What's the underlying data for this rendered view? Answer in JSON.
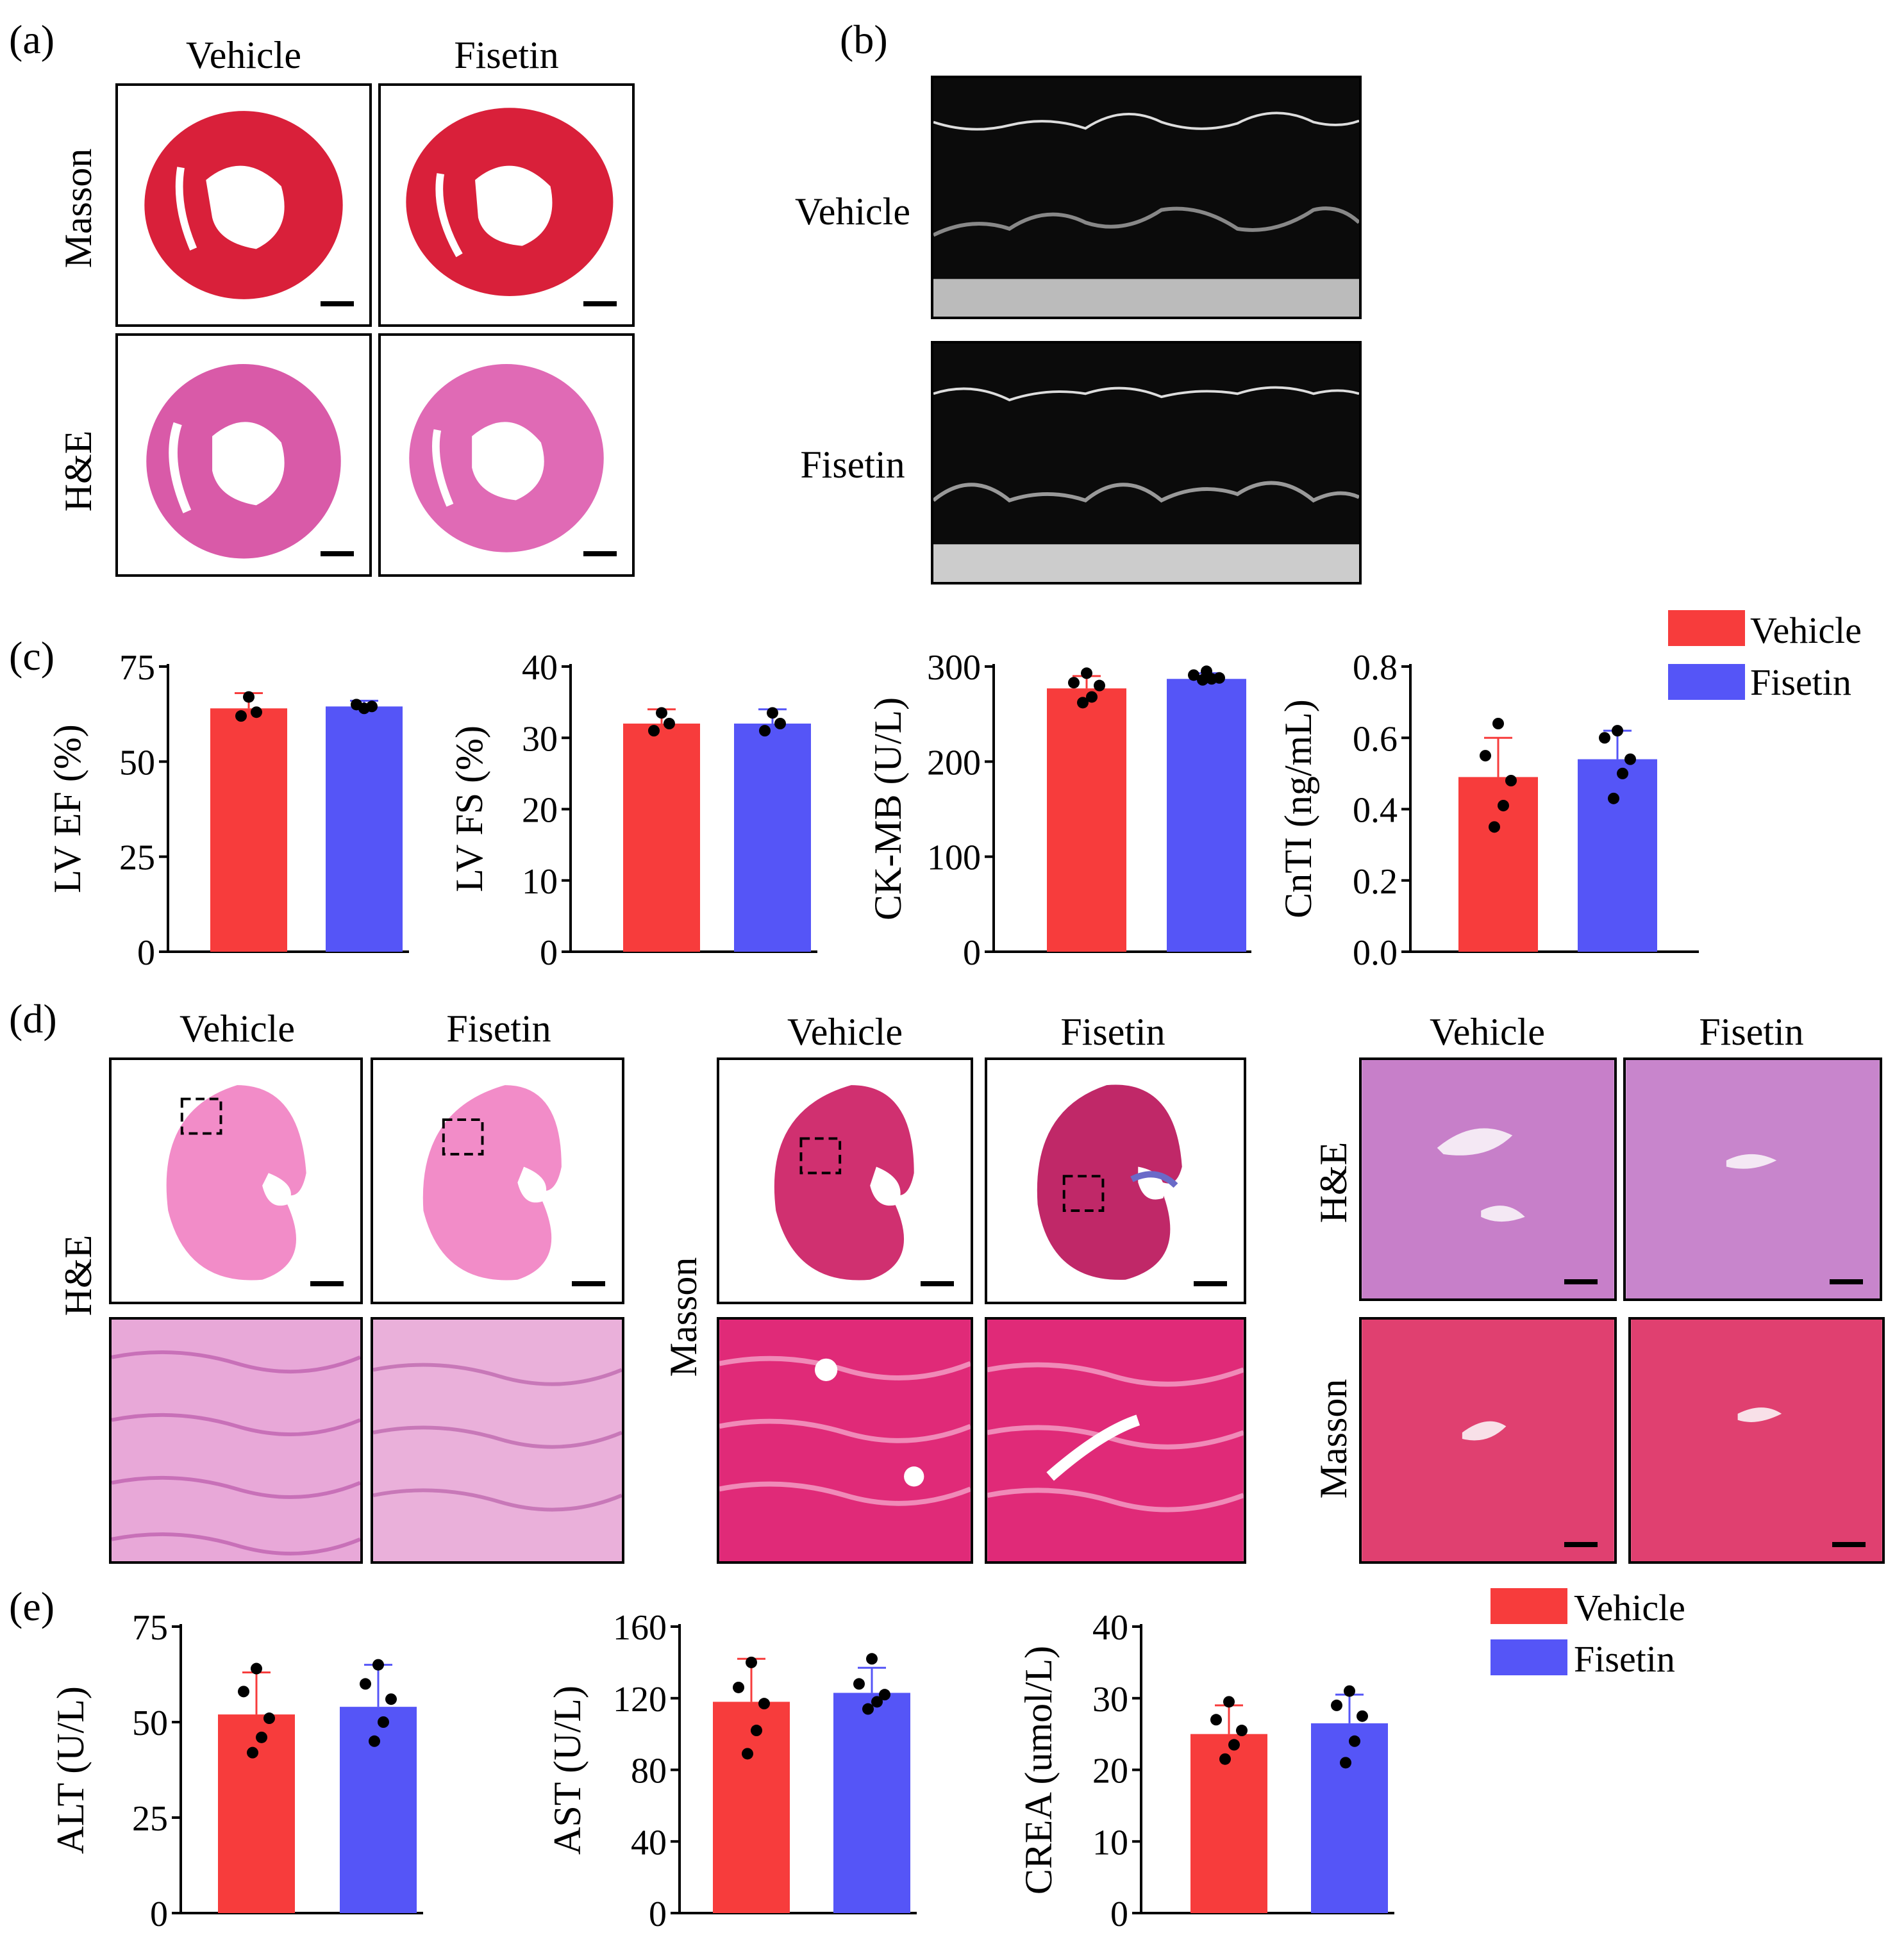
{
  "panels": {
    "a": "(a)",
    "b": "(b)",
    "c": "(c)",
    "d": "(d)",
    "e": "(e)"
  },
  "groups": {
    "vehicle": "Vehicle",
    "fisetin": "Fisetin"
  },
  "stains": {
    "masson": "Masson",
    "he": "H&E"
  },
  "colors": {
    "vehicle": "#f73c3c",
    "fisetin": "#5555f7",
    "masson_tissue": "#d9203a",
    "he_tissue": "#d95aa8",
    "liver_he": "#c77fc9",
    "liver_masson": "#e04070"
  },
  "legend": [
    {
      "label": "Vehicle",
      "color": "#f73c3c"
    },
    {
      "label": "Fisetin",
      "color": "#5555f7"
    }
  ],
  "chart_data": [
    {
      "type": "bar",
      "panel": "c",
      "ylabel": "LV EF (%)",
      "ylim": [
        0,
        75
      ],
      "yticks": [
        0,
        25,
        50,
        75
      ],
      "categories": [
        "Vehicle",
        "Fisetin"
      ],
      "series": [
        {
          "name": "Vehicle",
          "value": 64,
          "error": 4,
          "points": [
            62,
            63,
            67
          ]
        },
        {
          "name": "Fisetin",
          "value": 64.5,
          "error": 1.5,
          "points": [
            65,
            64.5,
            64
          ]
        }
      ]
    },
    {
      "type": "bar",
      "panel": "c",
      "ylabel": "LV FS (%)",
      "ylim": [
        0,
        40
      ],
      "yticks": [
        0,
        10,
        20,
        30,
        40
      ],
      "categories": [
        "Vehicle",
        "Fisetin"
      ],
      "series": [
        {
          "name": "Vehicle",
          "value": 32,
          "error": 2,
          "points": [
            31,
            32,
            33.5
          ]
        },
        {
          "name": "Fisetin",
          "value": 32,
          "error": 2,
          "points": [
            31,
            32,
            33.5
          ]
        }
      ]
    },
    {
      "type": "bar",
      "panel": "c",
      "ylabel": "CK-MB (U/L)",
      "ylim": [
        0,
        300
      ],
      "yticks": [
        0,
        100,
        200,
        300
      ],
      "categories": [
        "Vehicle",
        "Fisetin"
      ],
      "series": [
        {
          "name": "Vehicle",
          "value": 277,
          "error": 13,
          "points": [
            293,
            283,
            280,
            268,
            262
          ]
        },
        {
          "name": "Fisetin",
          "value": 287,
          "error": 6,
          "points": [
            295,
            291,
            288,
            287,
            286
          ]
        }
      ]
    },
    {
      "type": "bar",
      "panel": "c",
      "ylabel": "CnTI (ng/mL)",
      "ylim": [
        0,
        0.8
      ],
      "yticks": [
        "0.0",
        "0.2",
        "0.4",
        "0.6",
        "0.8"
      ],
      "categories": [
        "Vehicle",
        "Fisetin"
      ],
      "series": [
        {
          "name": "Vehicle",
          "value": 0.49,
          "error": 0.11,
          "points": [
            0.64,
            0.55,
            0.48,
            0.41,
            0.35
          ]
        },
        {
          "name": "Fisetin",
          "value": 0.54,
          "error": 0.08,
          "points": [
            0.62,
            0.6,
            0.54,
            0.5,
            0.43
          ]
        }
      ]
    },
    {
      "type": "bar",
      "panel": "e",
      "ylabel": "ALT (U/L)",
      "ylim": [
        0,
        75
      ],
      "yticks": [
        0,
        25,
        50,
        75
      ],
      "categories": [
        "Vehicle",
        "Fisetin"
      ],
      "series": [
        {
          "name": "Vehicle",
          "value": 52,
          "error": 11,
          "points": [
            64,
            58,
            51,
            46,
            42
          ]
        },
        {
          "name": "Fisetin",
          "value": 54,
          "error": 11,
          "points": [
            65,
            60,
            56,
            50,
            45
          ]
        }
      ]
    },
    {
      "type": "bar",
      "panel": "e",
      "ylabel": "AST (U/L)",
      "ylim": [
        0,
        160
      ],
      "yticks": [
        0,
        40,
        80,
        120,
        160
      ],
      "categories": [
        "Vehicle",
        "Fisetin"
      ],
      "series": [
        {
          "name": "Vehicle",
          "value": 118,
          "error": 24,
          "points": [
            140,
            126,
            117,
            102,
            89
          ]
        },
        {
          "name": "Fisetin",
          "value": 123,
          "error": 14,
          "points": [
            142,
            128,
            122,
            118,
            114
          ]
        }
      ]
    },
    {
      "type": "bar",
      "panel": "e",
      "ylabel": "CREA (umol/L)",
      "ylim": [
        0,
        40
      ],
      "yticks": [
        0,
        10,
        20,
        30,
        40
      ],
      "categories": [
        "Vehicle",
        "Fisetin"
      ],
      "series": [
        {
          "name": "Vehicle",
          "value": 25,
          "error": 4,
          "points": [
            29.5,
            27,
            25.5,
            23.5,
            21.5
          ]
        },
        {
          "name": "Fisetin",
          "value": 26.5,
          "error": 4,
          "points": [
            31,
            29,
            27.5,
            24,
            21
          ]
        }
      ]
    }
  ]
}
